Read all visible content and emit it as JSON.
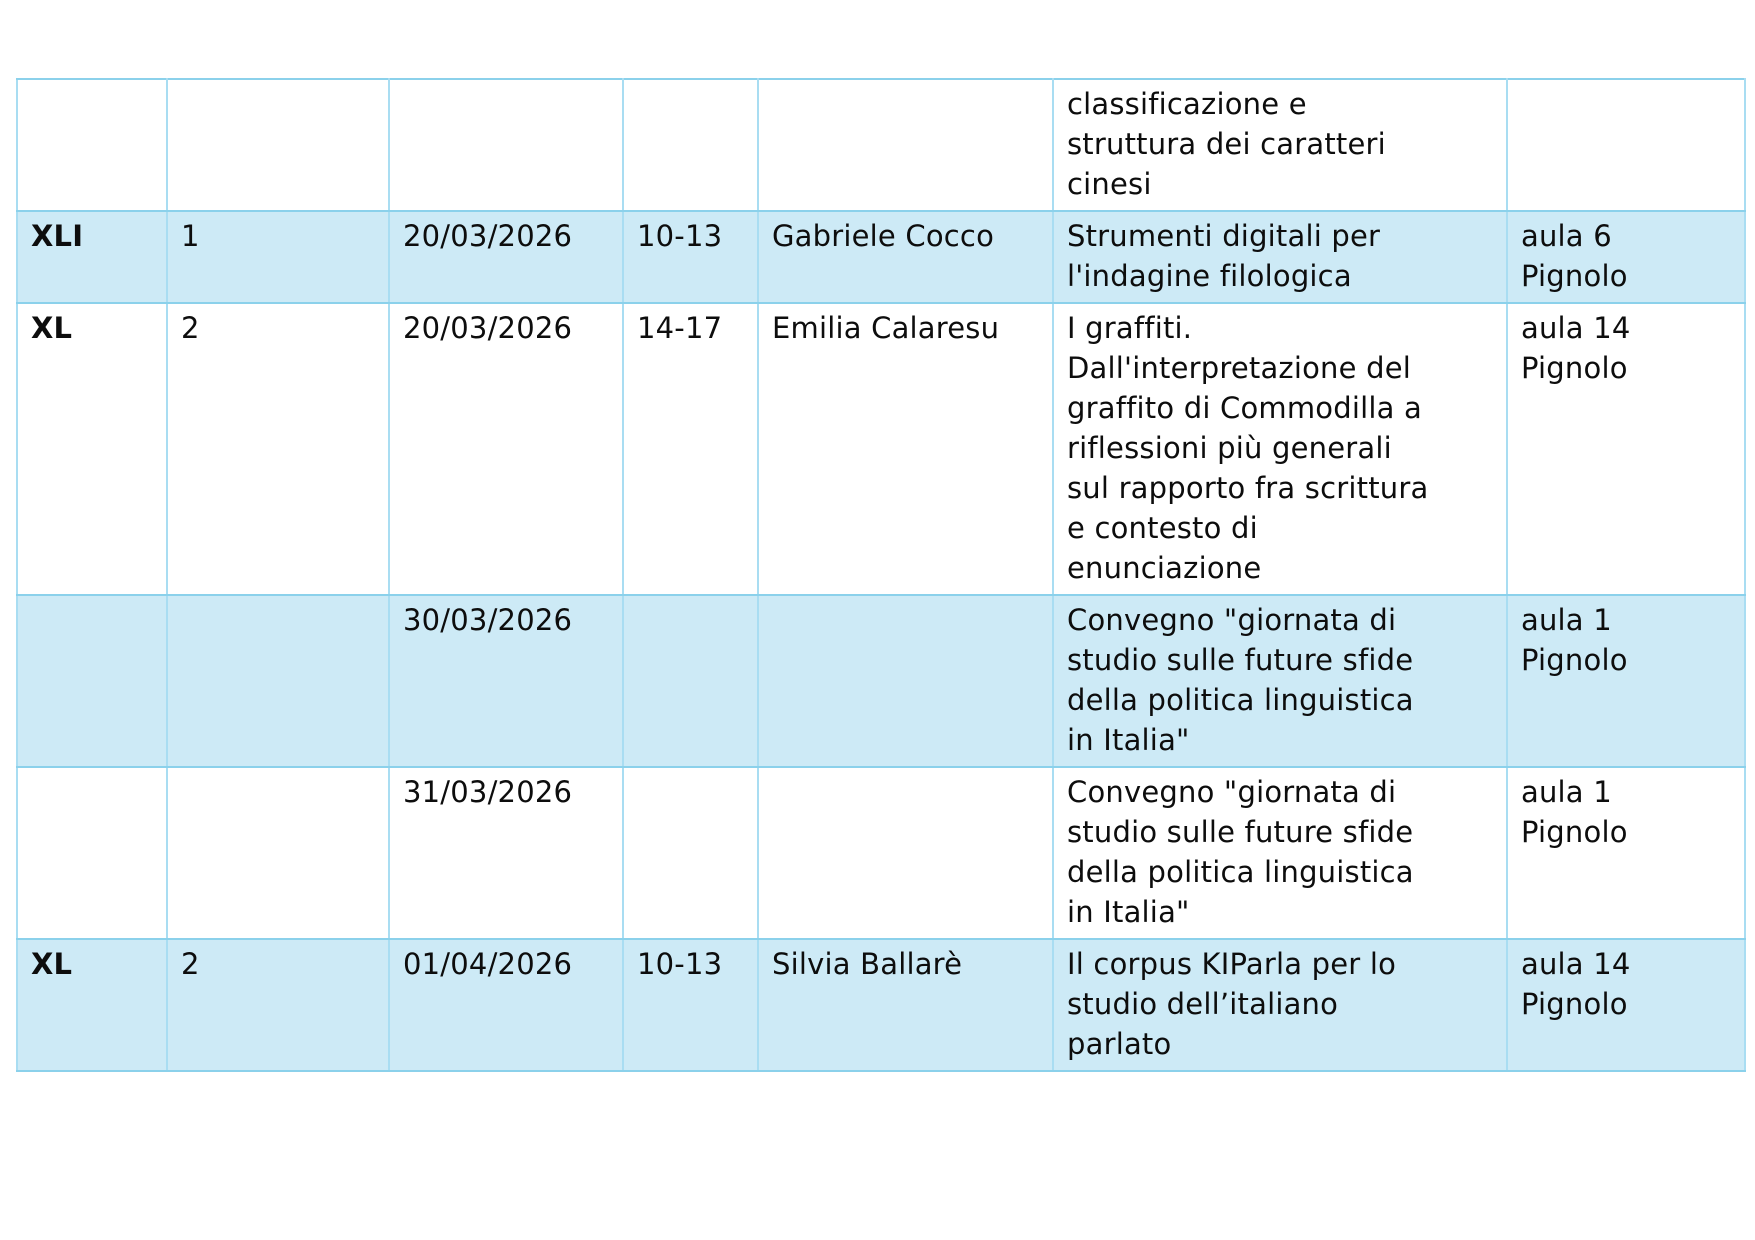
{
  "table": {
    "description": "Calendario lezioni / course schedule table",
    "columns": {
      "series": "",
      "n": "",
      "date": "",
      "time": "",
      "teacher": "",
      "topic": "",
      "room": ""
    },
    "rows": [
      {
        "series": "",
        "n": "",
        "date": "",
        "time": "",
        "teacher": "",
        "topic": "classificazione e\nstruttura dei caratteri\ncinesi",
        "room": ""
      },
      {
        "series": "XLI",
        "n": "1",
        "date": "20/03/2026",
        "time": "10-13",
        "teacher": "Gabriele Cocco",
        "topic": "Strumenti digitali per\nl'indagine filologica",
        "room": "aula 6\nPignolo"
      },
      {
        "series": "XL",
        "n": "2",
        "date": "20/03/2026",
        "time": "14-17",
        "teacher": "Emilia Calaresu",
        "topic": "I graffiti.\nDall'interpretazione del\ngraffito di Commodilla a\nriflessioni più generali\nsul rapporto fra scrittura\ne contesto di\nenunciazione",
        "room": "aula 14\nPignolo"
      },
      {
        "series": "",
        "n": "",
        "date": "30/03/2026",
        "time": "",
        "teacher": "",
        "topic": "Convegno \"giornata di\nstudio sulle future sfide\ndella politica linguistica\nin Italia\"",
        "room": "aula 1\nPignolo"
      },
      {
        "series": "",
        "n": "",
        "date": "31/03/2026",
        "time": "",
        "teacher": "",
        "topic": "Convegno \"giornata di\nstudio sulle future sfide\ndella politica linguistica\nin Italia\"",
        "room": "aula 1\nPignolo"
      },
      {
        "series": "XL",
        "n": "2",
        "date": "01/04/2026",
        "time": "10-13",
        "teacher": "Silvia Ballarè",
        "topic": "Il corpus KIParla per lo\nstudio dell’italiano\nparlato",
        "room": "aula 14\nPignolo"
      }
    ]
  },
  "colors": {
    "row_highlight": "#cdeaf6",
    "grid_horizontal": "#8bd1eb",
    "grid_vertical": "#a9ddf2",
    "text": "#0d0d0d",
    "background": "#ffffff"
  }
}
